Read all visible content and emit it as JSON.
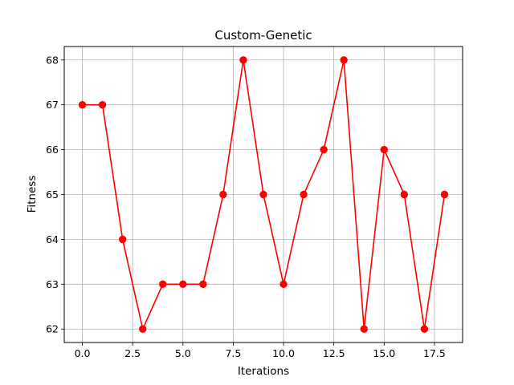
{
  "chart_data": {
    "type": "line",
    "title": "Custom-Genetic",
    "xlabel": "Iterations",
    "ylabel": "Fitness",
    "xlim": [
      -0.9,
      18.9
    ],
    "ylim": [
      61.7,
      68.3
    ],
    "xticks": [
      0,
      2.5,
      5,
      7.5,
      10,
      12.5,
      15,
      17.5
    ],
    "xtick_labels": [
      "0.0",
      "2.5",
      "5.0",
      "7.5",
      "10.0",
      "12.5",
      "15.0",
      "17.5"
    ],
    "yticks": [
      62,
      63,
      64,
      65,
      66,
      67,
      68
    ],
    "ytick_labels": [
      "62",
      "63",
      "64",
      "65",
      "66",
      "67",
      "68"
    ],
    "grid": true,
    "series": [
      {
        "color": "#ff0000",
        "marker": "circle",
        "x": [
          0,
          1,
          2,
          3,
          4,
          5,
          6,
          7,
          8,
          9,
          10,
          11,
          12,
          13,
          14,
          15,
          16,
          17,
          18
        ],
        "values": [
          67,
          67,
          64,
          62,
          63,
          63,
          63,
          65,
          68,
          65,
          63,
          65,
          66,
          68,
          62,
          66,
          65,
          62,
          65
        ]
      }
    ]
  }
}
